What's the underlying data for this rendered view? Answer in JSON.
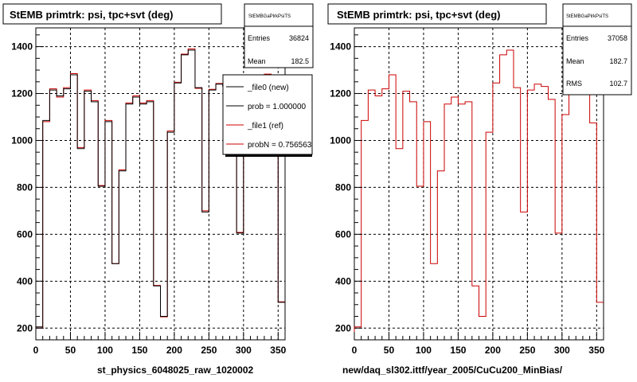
{
  "colors": {
    "ref": "#cc0000",
    "new": "#000000",
    "grid": "#000000",
    "frame": "#000000"
  },
  "left": {
    "title": "StEMB primtrk: psi, tpc+svt (deg)",
    "xlabel": "st_physics_6048025_raw_1020002",
    "stats": {
      "title": "StEMBGaPlrkPsiTS",
      "rows": [
        {
          "label": "Entries",
          "value": "36824"
        },
        {
          "label": "Mean",
          "value": "182.5"
        }
      ]
    },
    "legend": [
      {
        "text": "_file0 (new)",
        "color": "#000000"
      },
      {
        "text": "prob = 1.000000",
        "color": "#000000"
      },
      {
        "text": "_file1 (ref)",
        "color": "#cc0000"
      },
      {
        "text": "probN = 0.756563",
        "color": "#cc0000"
      }
    ]
  },
  "right": {
    "title": "StEMB primtrk: psi, tpc+svt (deg)",
    "xlabel": "new/daq_sl302.ittf/year_2005/CuCu200_MinBias/",
    "stats": {
      "title": "StEMBGaPlrkPsiTS",
      "rows": [
        {
          "label": "Entries",
          "value": "37058"
        },
        {
          "label": "Mean",
          "value": "182.7"
        },
        {
          "label": "RMS",
          "value": "102.7"
        }
      ]
    }
  },
  "chart_data": [
    {
      "type": "line",
      "title": "StEMB primtrk: psi, tpc+svt (deg)",
      "xlabel": "st_physics_6048025_raw_1020002",
      "ylabel": "",
      "xlim": [
        0,
        360
      ],
      "ylim": [
        150,
        1480
      ],
      "xticks": [
        0,
        50,
        100,
        150,
        200,
        250,
        300,
        350
      ],
      "yticks": [
        200,
        400,
        600,
        800,
        1000,
        1200,
        1400
      ],
      "grid": true,
      "bin_width": 10,
      "series": [
        {
          "name": "_file0 (new)",
          "values": [
            205,
            1085,
            1215,
            1190,
            1220,
            1280,
            965,
            1210,
            1165,
            805,
            1080,
            475,
            870,
            1155,
            1185,
            1155,
            1165,
            380,
            250,
            1035,
            1245,
            1365,
            1385,
            1225,
            695,
            1215,
            1240,
            1230,
            1175,
            605,
            1110,
            1215,
            1245,
            1280,
            1075,
            310
          ]
        },
        {
          "name": "_file1 (ref)",
          "values": [
            200,
            1080,
            1220,
            1185,
            1225,
            1285,
            970,
            1215,
            1170,
            808,
            1085,
            475,
            875,
            1160,
            1190,
            1160,
            1170,
            382,
            248,
            1040,
            1248,
            1368,
            1390,
            1222,
            700,
            1218,
            1243,
            1233,
            1178,
            608,
            1113,
            1218,
            1248,
            1283,
            1078,
            312
          ]
        }
      ]
    },
    {
      "type": "line",
      "title": "StEMB primtrk: psi, tpc+svt (deg)",
      "xlabel": "new/daq_sl302.ittf/year_2005/CuCu200_MinBias/",
      "ylabel": "",
      "xlim": [
        0,
        360
      ],
      "ylim": [
        150,
        1480
      ],
      "xticks": [
        0,
        50,
        100,
        150,
        200,
        250,
        300,
        350
      ],
      "yticks": [
        200,
        400,
        600,
        800,
        1000,
        1200,
        1400
      ],
      "grid": true,
      "bin_width": 10,
      "series": [
        {
          "name": "",
          "values": [
            205,
            1085,
            1215,
            1190,
            1220,
            1280,
            965,
            1210,
            1165,
            805,
            1080,
            475,
            870,
            1155,
            1185,
            1155,
            1165,
            380,
            250,
            1035,
            1245,
            1365,
            1385,
            1225,
            695,
            1215,
            1240,
            1230,
            1175,
            605,
            1110,
            1215,
            1245,
            1280,
            1075,
            310
          ]
        }
      ]
    }
  ]
}
